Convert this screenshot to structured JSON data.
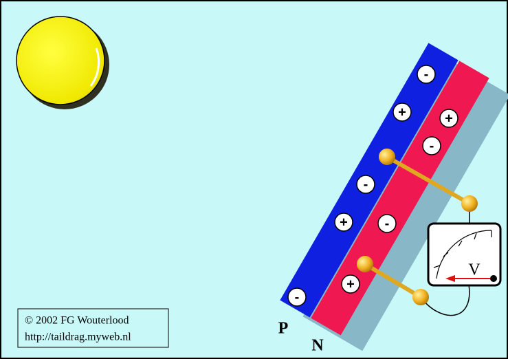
{
  "diagram": {
    "layers": {
      "p": "P",
      "n": "N"
    },
    "meter": {
      "unit": "V"
    },
    "charges": {
      "p": [
        "-",
        "+",
        "-",
        "+",
        "-"
      ],
      "n": [
        "+",
        "-",
        "-",
        "+"
      ]
    },
    "credit": {
      "line1": "© 2002 FG Wouterlood",
      "line2": "http://taildrag.myweb.nl"
    }
  }
}
